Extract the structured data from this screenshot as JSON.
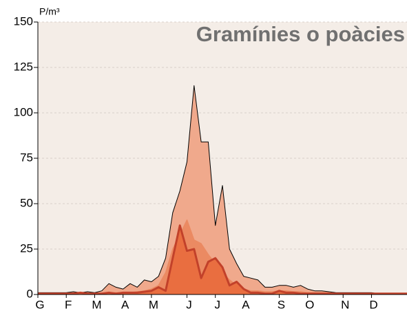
{
  "chart_data": {
    "type": "area",
    "title": "Gramínies o poàcies",
    "y_label": "P/m³",
    "x": [
      0,
      1,
      2,
      3,
      4,
      5,
      6,
      7,
      8,
      9,
      10,
      11,
      12,
      13,
      14,
      15,
      16,
      17,
      18,
      19,
      20,
      21,
      22,
      23,
      24,
      25,
      26,
      27,
      28,
      29,
      30,
      31,
      32,
      33,
      34,
      35,
      36,
      37,
      38,
      39,
      40,
      41,
      42,
      43,
      44,
      45,
      46,
      47,
      48,
      49,
      50,
      51,
      52
    ],
    "xlim": [
      0,
      52
    ],
    "xticks": [
      {
        "value": 0,
        "label": "G"
      },
      {
        "value": 4,
        "label": "F"
      },
      {
        "value": 8,
        "label": "M"
      },
      {
        "value": 12,
        "label": "A"
      },
      {
        "value": 16,
        "label": "M"
      },
      {
        "value": 21,
        "label": "J"
      },
      {
        "value": 25,
        "label": "J"
      },
      {
        "value": 29,
        "label": "A"
      },
      {
        "value": 34,
        "label": "S"
      },
      {
        "value": 38,
        "label": "O"
      },
      {
        "value": 43,
        "label": "N"
      },
      {
        "value": 47,
        "label": "D"
      }
    ],
    "ylim": [
      0,
      150
    ],
    "yticks": [
      0,
      25,
      50,
      75,
      100,
      125,
      150
    ],
    "grid": true,
    "series": [
      {
        "color": "#f0a98c",
        "values": [
          1,
          1,
          1,
          1,
          1,
          1.5,
          1,
          1.5,
          1,
          2,
          6,
          4,
          3,
          6,
          4,
          8,
          7,
          10,
          20,
          45,
          57,
          73,
          115,
          84,
          84,
          38,
          60,
          25,
          17,
          10,
          9,
          8,
          4,
          4,
          5,
          5,
          4,
          5,
          3,
          2,
          2,
          1.5,
          1,
          1,
          1,
          1,
          1,
          1,
          0.5,
          0.5,
          0.5,
          0.5,
          0.5
        ]
      },
      {
        "color": "#eb8a62",
        "values": [
          0.5,
          0.5,
          0.5,
          0.5,
          0.5,
          0.5,
          0.5,
          0.5,
          0.5,
          0.5,
          1,
          1,
          1,
          1,
          1.5,
          2,
          3,
          5,
          12,
          25,
          33,
          41,
          30,
          28,
          22,
          17,
          12,
          8,
          5,
          3,
          2,
          2,
          1.5,
          1.5,
          2,
          2,
          1.5,
          1.5,
          1,
          1,
          1,
          1,
          0.5,
          0.5,
          0.5,
          0.5,
          0.5,
          0.5,
          0.5,
          0.5,
          0.5,
          0.5,
          0.5
        ]
      },
      {
        "color": "#c2412a",
        "values": [
          0.5,
          0.5,
          0.5,
          0.5,
          0.5,
          0.5,
          1,
          0.5,
          0.5,
          0.5,
          1,
          0.5,
          1,
          1,
          1,
          1.5,
          2,
          4,
          2,
          20,
          38,
          24,
          25,
          9,
          18,
          20,
          15,
          5,
          7,
          3,
          1,
          1,
          0.5,
          0.5,
          2,
          1,
          1,
          0.5,
          0.5,
          0.5,
          0.5,
          0.5,
          0.5,
          0.5,
          0.5,
          0.5,
          0.5,
          0.5,
          0.5,
          0.5,
          0.5,
          0.5,
          0.5
        ]
      }
    ]
  }
}
